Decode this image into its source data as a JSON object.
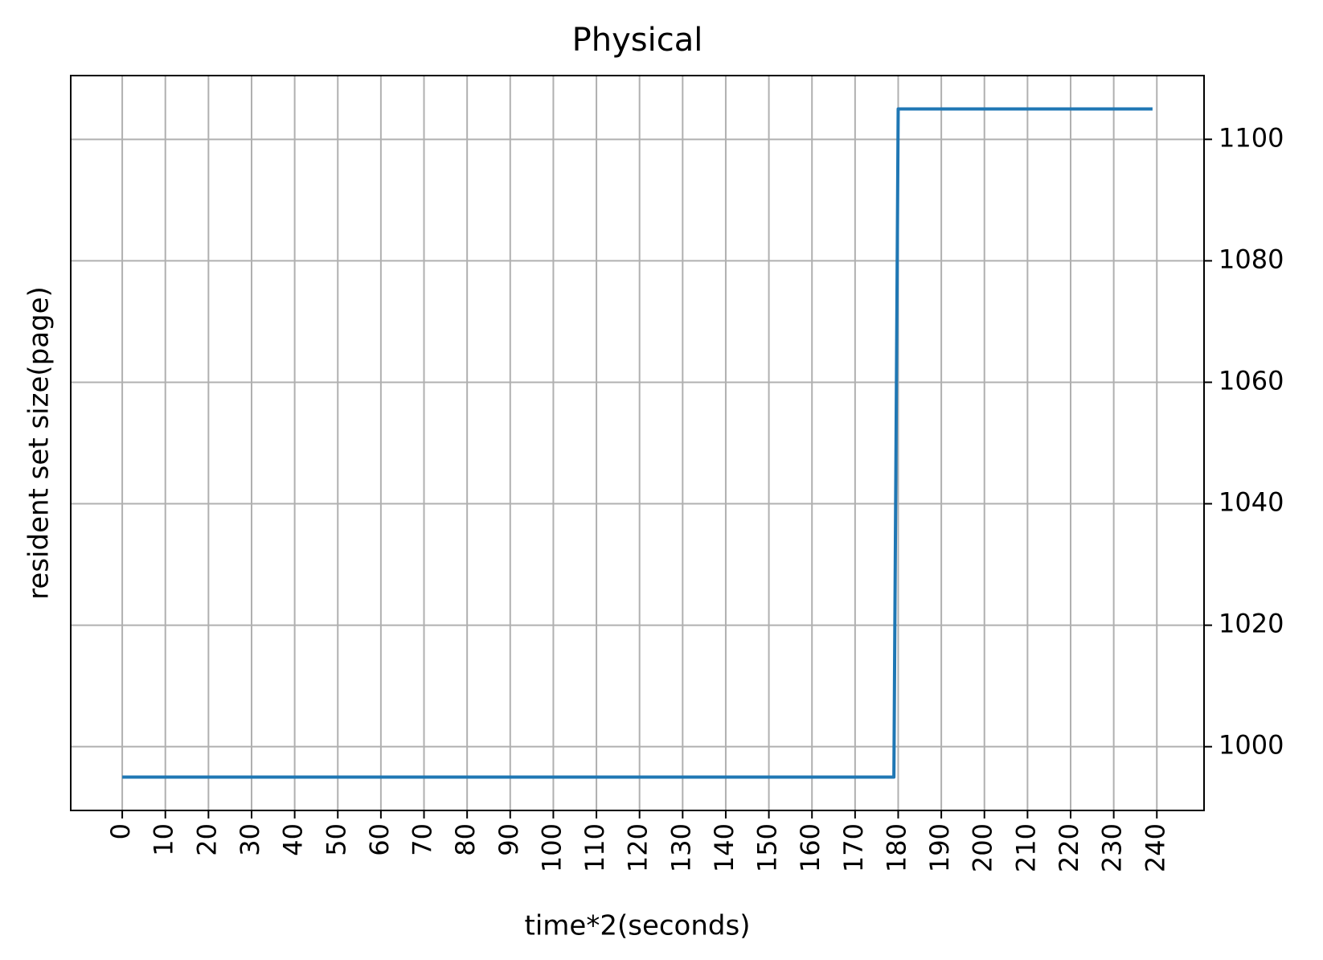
{
  "chart_data": {
    "type": "line",
    "title": "Physical",
    "x_label": "time*2(seconds)",
    "y_label": "resident set size(page)",
    "x": [
      0,
      179,
      180,
      239
    ],
    "series": [
      {
        "color": "#1f77b4",
        "values": [
          995,
          995,
          1105,
          1105
        ]
      }
    ],
    "xlim": [
      -11.95,
      250.95
    ],
    "xticks": [
      0,
      10,
      20,
      30,
      40,
      50,
      60,
      70,
      80,
      90,
      100,
      110,
      120,
      130,
      140,
      150,
      160,
      170,
      180,
      190,
      200,
      210,
      220,
      230,
      240
    ],
    "ylim": [
      989.5,
      1110.5
    ],
    "yticks": [
      1000,
      1020,
      1040,
      1060,
      1080,
      1100
    ],
    "y_axis_side": "right",
    "grid": true
  }
}
